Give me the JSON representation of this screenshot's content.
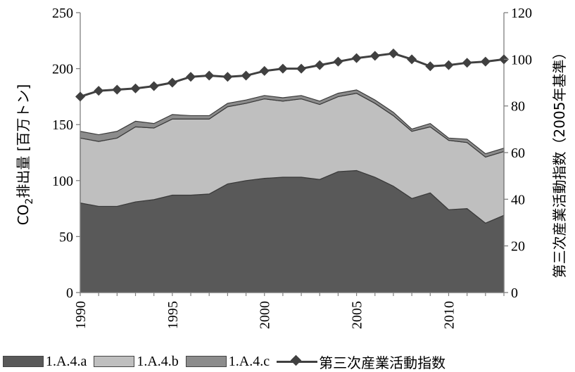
{
  "chart_data": {
    "type": "area",
    "x": [
      1990,
      1991,
      1992,
      1993,
      1994,
      1995,
      1996,
      1997,
      1998,
      1999,
      2000,
      2001,
      2002,
      2003,
      2004,
      2005,
      2006,
      2007,
      2008,
      2009,
      2010,
      2011,
      2012,
      2013
    ],
    "x_ticks": [
      "1990",
      "1995",
      "2000",
      "2005",
      "2010"
    ],
    "series": [
      {
        "name": "1.A.4.a",
        "kind": "stacked-area",
        "axis": "left",
        "color": "#595959",
        "values": [
          80,
          77,
          77,
          81,
          83,
          87,
          87,
          88,
          97,
          100,
          102,
          103,
          103,
          101,
          108,
          109,
          103,
          95,
          84,
          89,
          74,
          75,
          62,
          69
        ]
      },
      {
        "name": "1.A.4.b",
        "kind": "stacked-area",
        "axis": "left",
        "color": "#bfbfbf",
        "values": [
          58,
          58,
          61,
          67,
          64,
          68,
          68,
          67,
          69,
          69,
          71,
          68,
          70,
          67,
          67,
          69,
          66,
          63,
          60,
          59,
          62,
          59,
          59,
          57
        ]
      },
      {
        "name": "1.A.4.c",
        "kind": "stacked-area",
        "axis": "left",
        "color": "#8c8c8c",
        "values": [
          6,
          6,
          6,
          5,
          4,
          4,
          3,
          3,
          3,
          3,
          3,
          3,
          3,
          3,
          3,
          3,
          3,
          3,
          2,
          3,
          2,
          3,
          3,
          3
        ]
      },
      {
        "name": "第三次産業活動指数",
        "kind": "line-marker",
        "axis": "right",
        "color": "#404040",
        "values": [
          84,
          86.5,
          87,
          87.5,
          88.5,
          90,
          92.5,
          93,
          92.5,
          93,
          95,
          96,
          96,
          97.5,
          99,
          100.5,
          101.5,
          102.5,
          100,
          97,
          97.5,
          98.5,
          99,
          100
        ]
      }
    ],
    "left_axis": {
      "label_prefix": "CO",
      "label_sub": "2",
      "label_rest": "排出量 [百万トン]",
      "ylim": [
        0,
        250
      ],
      "ticks": [
        "0",
        "50",
        "100",
        "150",
        "200",
        "250"
      ]
    },
    "right_axis": {
      "label": "第三次産業活動指数（2005年基準）",
      "ylim": [
        0,
        120
      ],
      "ticks": [
        "0",
        "20",
        "40",
        "60",
        "80",
        "100",
        "120"
      ]
    },
    "grid": false,
    "legend_position": "bottom"
  }
}
